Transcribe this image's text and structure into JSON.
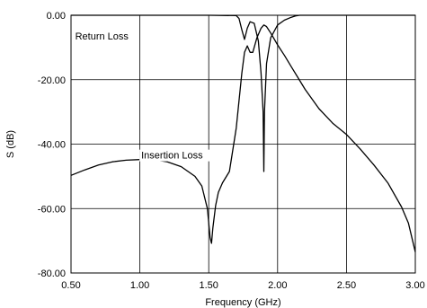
{
  "chart_data": {
    "type": "line",
    "title": "",
    "xlabel": "Frequency (GHz)",
    "ylabel": "S (dB)",
    "xlim": [
      0.5,
      3.0
    ],
    "ylim": [
      -80,
      0
    ],
    "x_ticks": [
      0.5,
      1.0,
      1.5,
      2.0,
      2.5,
      3.0
    ],
    "x_tick_labels": [
      "0.50",
      "1.00",
      "1.50",
      "2.00",
      "2.50",
      "3.00"
    ],
    "y_ticks": [
      0,
      -20,
      -40,
      -60,
      -80
    ],
    "y_tick_labels": [
      "0.00",
      "-20.00",
      "-40.00",
      "-60.00",
      "-80.00"
    ],
    "grid": true,
    "annotations": [
      {
        "text": "Return Loss",
        "x": 0.53,
        "y": -7.5
      },
      {
        "text": "Insertion Loss",
        "x": 1.01,
        "y": -44.5
      }
    ],
    "series": [
      {
        "name": "",
        "x": [
          0.5,
          0.6,
          0.7,
          0.8,
          0.9,
          1.0,
          1.1,
          1.2,
          1.3,
          1.4,
          1.45,
          1.49,
          1.51,
          1.52,
          1.53,
          1.55,
          1.57,
          1.6,
          1.65,
          1.7,
          1.74,
          1.76,
          1.78,
          1.8,
          1.82,
          1.85,
          1.88,
          1.9,
          1.92,
          1.95,
          2.0,
          2.05,
          2.1,
          2.15,
          2.2,
          2.3,
          2.4,
          2.5,
          2.6,
          2.7,
          2.8,
          2.9,
          2.95,
          3.0
        ],
        "values": [
          -49.7,
          -48.0,
          -46.5,
          -45.5,
          -45.0,
          -44.8,
          -44.8,
          -45.5,
          -47.0,
          -50.0,
          -53.0,
          -60.0,
          -69.0,
          -70.8,
          -66.0,
          -59.0,
          -55.0,
          -52.0,
          -48.5,
          -35.0,
          -18.0,
          -11.5,
          -9.5,
          -11.5,
          -11.5,
          -7.0,
          -4.0,
          -3.0,
          -3.5,
          -5.5,
          -9.2,
          -12.5,
          -16.0,
          -19.5,
          -23.0,
          -29.0,
          -33.5,
          -37.0,
          -41.5,
          -46.5,
          -52.0,
          -59.5,
          -64.5,
          -73.5
        ]
      },
      {
        "name": "",
        "x": [
          0.5,
          1.0,
          1.5,
          1.7,
          1.72,
          1.74,
          1.76,
          1.78,
          1.8,
          1.83,
          1.86,
          1.88,
          1.895,
          1.9,
          1.905,
          1.92,
          1.95,
          2.0,
          2.05,
          2.1,
          2.13,
          2.16,
          2.2,
          2.5,
          3.0
        ],
        "values": [
          0.0,
          0.0,
          0.0,
          -0.1,
          -1.0,
          -4.5,
          -7.5,
          -4.0,
          -2.0,
          -2.5,
          -8.0,
          -18.0,
          -30.0,
          -48.5,
          -30.0,
          -15.0,
          -7.0,
          -3.0,
          -1.5,
          -0.6,
          -0.2,
          0.0,
          0.0,
          0.0,
          0.0
        ]
      }
    ]
  }
}
